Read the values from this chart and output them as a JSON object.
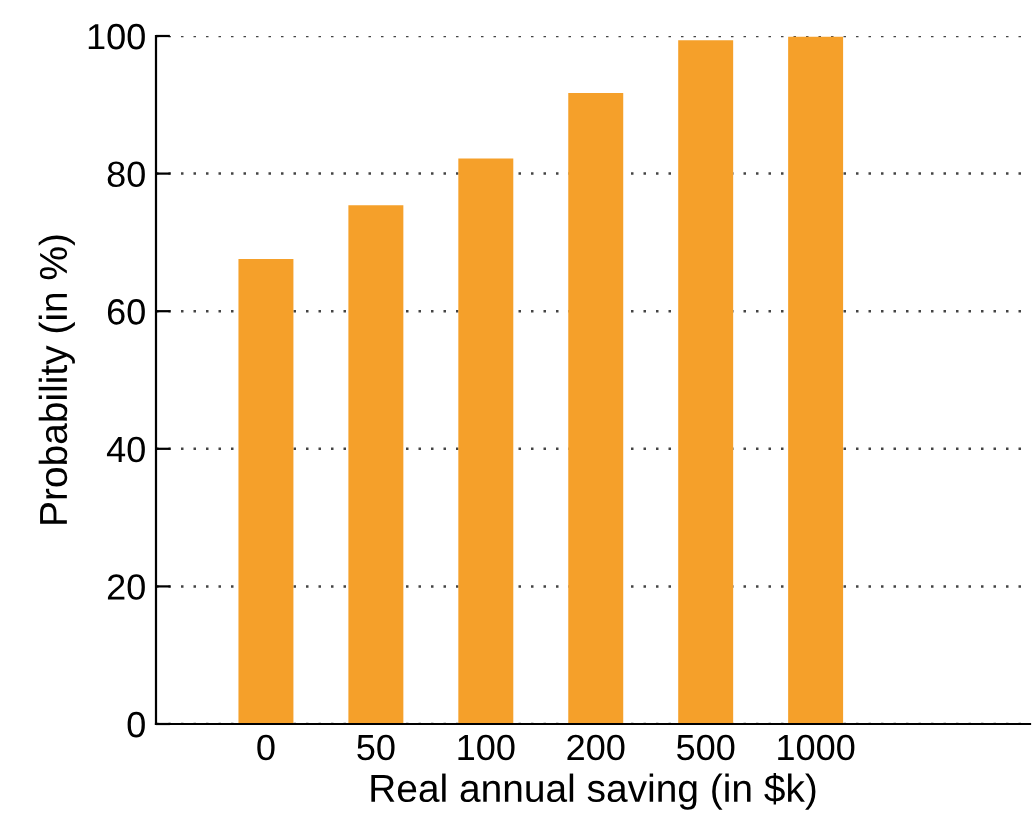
{
  "chart_data": {
    "type": "bar",
    "xlabel": "Real annual saving (in $k)",
    "ylabel": "Probability (in %)",
    "categories": [
      "0",
      "50",
      "100",
      "200",
      "500",
      "1000"
    ],
    "values": [
      67.6,
      75.4,
      82.2,
      91.7,
      99.4,
      99.9
    ],
    "color": "#f5a02a",
    "ylim": [
      0,
      100
    ],
    "yticks": [
      0,
      20,
      40,
      60,
      80,
      100
    ],
    "grid": "y"
  }
}
